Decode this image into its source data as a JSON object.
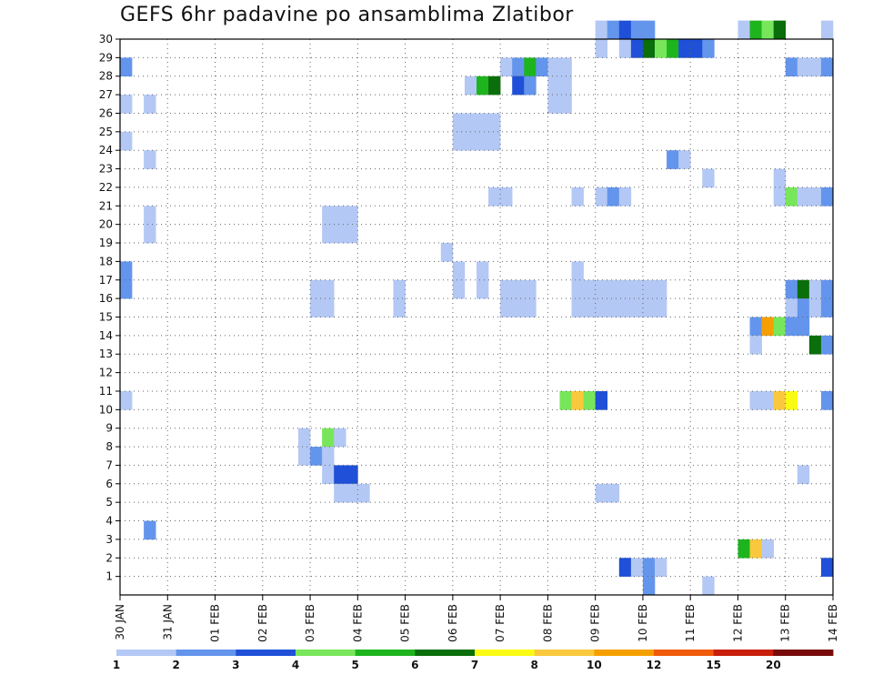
{
  "title": "GEFS 6hr padavine po ansamblima Zlatibor",
  "chart_data": {
    "type": "heatmap",
    "title": "GEFS 6hr padavine po ansamblima Zlatibor",
    "x_tick_labels": [
      "30 JAN",
      "31 JAN",
      "01 FEB",
      "02 FEB",
      "03 FEB",
      "04 FEB",
      "05 FEB",
      "06 FEB",
      "07 FEB",
      "08 FEB",
      "09 FEB",
      "10 FEB",
      "11 FEB",
      "12 FEB",
      "13 FEB",
      "14 FEB"
    ],
    "y_tick_labels": [
      "1",
      "2",
      "3",
      "4",
      "5",
      "6",
      "7",
      "8",
      "9",
      "10",
      "11",
      "12",
      "13",
      "14",
      "15",
      "16",
      "17",
      "18",
      "19",
      "20",
      "21",
      "22",
      "23",
      "24",
      "25",
      "26",
      "27",
      "28",
      "29",
      "30"
    ],
    "x_range_steps": [
      0,
      60
    ],
    "y_range_members": [
      0,
      30
    ],
    "step_hours": 6,
    "colorbar": {
      "labels": [
        "1",
        "2",
        "3",
        "4",
        "5",
        "6",
        "7",
        "8",
        "10",
        "12",
        "15",
        "20"
      ],
      "bins": [
        {
          "min": 1,
          "color": "#b4c8f5"
        },
        {
          "min": 2,
          "color": "#6495ed"
        },
        {
          "min": 3,
          "color": "#1f50d7"
        },
        {
          "min": 4,
          "color": "#78e65a"
        },
        {
          "min": 5,
          "color": "#1eb41e"
        },
        {
          "min": 6,
          "color": "#0a6e0a"
        },
        {
          "min": 7,
          "color": "#fafa14"
        },
        {
          "min": 8,
          "color": "#fac83c"
        },
        {
          "min": 10,
          "color": "#f5a000"
        },
        {
          "min": 12,
          "color": "#f05a0a"
        },
        {
          "min": 15,
          "color": "#c81e0a"
        },
        {
          "min": 20,
          "color": "#780a0a"
        }
      ]
    },
    "cells": [
      {
        "m": 30,
        "s": 40,
        "c": 1
      },
      {
        "m": 30,
        "s": 41,
        "c": 2
      },
      {
        "m": 30,
        "s": 42,
        "c": 3
      },
      {
        "m": 30,
        "s": 43,
        "c": 2
      },
      {
        "m": 30,
        "s": 44,
        "c": 2
      },
      {
        "m": 30,
        "s": 52,
        "c": 1
      },
      {
        "m": 30,
        "s": 53,
        "c": 5
      },
      {
        "m": 30,
        "s": 54,
        "c": 4
      },
      {
        "m": 30,
        "s": 55,
        "c": 6
      },
      {
        "m": 30,
        "s": 59,
        "c": 1
      },
      {
        "m": 29,
        "s": 40,
        "c": 1
      },
      {
        "m": 29,
        "s": 42,
        "c": 1
      },
      {
        "m": 29,
        "s": 43,
        "c": 3
      },
      {
        "m": 29,
        "s": 44,
        "c": 6
      },
      {
        "m": 29,
        "s": 45,
        "c": 4
      },
      {
        "m": 29,
        "s": 46,
        "c": 5
      },
      {
        "m": 29,
        "s": 47,
        "c": 3
      },
      {
        "m": 29,
        "s": 48,
        "c": 3
      },
      {
        "m": 29,
        "s": 49,
        "c": 2
      },
      {
        "m": 28,
        "s": 0,
        "c": 2
      },
      {
        "m": 28,
        "s": 32,
        "c": 1
      },
      {
        "m": 28,
        "s": 33,
        "c": 2
      },
      {
        "m": 28,
        "s": 34,
        "c": 5
      },
      {
        "m": 28,
        "s": 35,
        "c": 2
      },
      {
        "m": 28,
        "s": 36,
        "c": 1
      },
      {
        "m": 28,
        "s": 37,
        "c": 1
      },
      {
        "m": 28,
        "s": 56,
        "c": 2
      },
      {
        "m": 28,
        "s": 57,
        "c": 1
      },
      {
        "m": 28,
        "s": 58,
        "c": 1
      },
      {
        "m": 28,
        "s": 59,
        "c": 2
      },
      {
        "m": 27,
        "s": 29,
        "c": 1
      },
      {
        "m": 27,
        "s": 30,
        "c": 5
      },
      {
        "m": 27,
        "s": 31,
        "c": 6
      },
      {
        "m": 27,
        "s": 33,
        "c": 3
      },
      {
        "m": 27,
        "s": 34,
        "c": 2
      },
      {
        "m": 27,
        "s": 36,
        "c": 1
      },
      {
        "m": 27,
        "s": 37,
        "c": 1
      },
      {
        "m": 26,
        "s": 0,
        "c": 1
      },
      {
        "m": 26,
        "s": 2,
        "c": 1
      },
      {
        "m": 26,
        "s": 36,
        "c": 1
      },
      {
        "m": 26,
        "s": 37,
        "c": 1
      },
      {
        "m": 25,
        "s": 28,
        "c": 1
      },
      {
        "m": 25,
        "s": 29,
        "c": 1
      },
      {
        "m": 25,
        "s": 30,
        "c": 1
      },
      {
        "m": 25,
        "s": 31,
        "c": 1
      },
      {
        "m": 24,
        "s": 28,
        "c": 1
      },
      {
        "m": 24,
        "s": 29,
        "c": 1
      },
      {
        "m": 24,
        "s": 30,
        "c": 1
      },
      {
        "m": 24,
        "s": 31,
        "c": 1
      },
      {
        "m": 24,
        "s": 0,
        "c": 1
      },
      {
        "m": 23,
        "s": 2,
        "c": 1
      },
      {
        "m": 23,
        "s": 46,
        "c": 2
      },
      {
        "m": 23,
        "s": 47,
        "c": 1
      },
      {
        "m": 22,
        "s": 49,
        "c": 1
      },
      {
        "m": 22,
        "s": 55,
        "c": 1
      },
      {
        "m": 21,
        "s": 31,
        "c": 1
      },
      {
        "m": 21,
        "s": 32,
        "c": 1
      },
      {
        "m": 21,
        "s": 38,
        "c": 1
      },
      {
        "m": 21,
        "s": 40,
        "c": 1
      },
      {
        "m": 21,
        "s": 41,
        "c": 2
      },
      {
        "m": 21,
        "s": 42,
        "c": 1
      },
      {
        "m": 21,
        "s": 55,
        "c": 1
      },
      {
        "m": 21,
        "s": 56,
        "c": 4
      },
      {
        "m": 21,
        "s": 57,
        "c": 1
      },
      {
        "m": 21,
        "s": 58,
        "c": 1
      },
      {
        "m": 21,
        "s": 59,
        "c": 2
      },
      {
        "m": 20,
        "s": 2,
        "c": 1
      },
      {
        "m": 20,
        "s": 17,
        "c": 1
      },
      {
        "m": 20,
        "s": 18,
        "c": 1
      },
      {
        "m": 20,
        "s": 19,
        "c": 1
      },
      {
        "m": 19,
        "s": 2,
        "c": 1
      },
      {
        "m": 19,
        "s": 17,
        "c": 1
      },
      {
        "m": 19,
        "s": 18,
        "c": 1
      },
      {
        "m": 19,
        "s": 19,
        "c": 1
      },
      {
        "m": 18,
        "s": 27,
        "c": 1
      },
      {
        "m": 17,
        "s": 38,
        "c": 1
      },
      {
        "m": 17,
        "s": 0,
        "c": 2
      },
      {
        "m": 17,
        "s": 28,
        "c": 1
      },
      {
        "m": 17,
        "s": 30,
        "c": 1
      },
      {
        "m": 16,
        "s": 0,
        "c": 2
      },
      {
        "m": 16,
        "s": 16,
        "c": 1
      },
      {
        "m": 16,
        "s": 17,
        "c": 1
      },
      {
        "m": 16,
        "s": 23,
        "c": 1
      },
      {
        "m": 16,
        "s": 28,
        "c": 1
      },
      {
        "m": 16,
        "s": 30,
        "c": 1
      },
      {
        "m": 16,
        "s": 32,
        "c": 1
      },
      {
        "m": 16,
        "s": 33,
        "c": 1
      },
      {
        "m": 16,
        "s": 34,
        "c": 1
      },
      {
        "m": 16,
        "s": 38,
        "c": 1
      },
      {
        "m": 16,
        "s": 39,
        "c": 1
      },
      {
        "m": 16,
        "s": 40,
        "c": 1
      },
      {
        "m": 16,
        "s": 41,
        "c": 1
      },
      {
        "m": 16,
        "s": 42,
        "c": 1
      },
      {
        "m": 16,
        "s": 43,
        "c": 1
      },
      {
        "m": 16,
        "s": 44,
        "c": 1
      },
      {
        "m": 16,
        "s": 45,
        "c": 1
      },
      {
        "m": 16,
        "s": 56,
        "c": 2
      },
      {
        "m": 16,
        "s": 57,
        "c": 6
      },
      {
        "m": 16,
        "s": 58,
        "c": 1
      },
      {
        "m": 16,
        "s": 59,
        "c": 2
      },
      {
        "m": 15,
        "s": 16,
        "c": 1
      },
      {
        "m": 15,
        "s": 17,
        "c": 1
      },
      {
        "m": 15,
        "s": 23,
        "c": 1
      },
      {
        "m": 15,
        "s": 32,
        "c": 1
      },
      {
        "m": 15,
        "s": 33,
        "c": 1
      },
      {
        "m": 15,
        "s": 34,
        "c": 1
      },
      {
        "m": 15,
        "s": 38,
        "c": 1
      },
      {
        "m": 15,
        "s": 39,
        "c": 1
      },
      {
        "m": 15,
        "s": 40,
        "c": 1
      },
      {
        "m": 15,
        "s": 41,
        "c": 1
      },
      {
        "m": 15,
        "s": 42,
        "c": 1
      },
      {
        "m": 15,
        "s": 43,
        "c": 1
      },
      {
        "m": 15,
        "s": 44,
        "c": 1
      },
      {
        "m": 15,
        "s": 45,
        "c": 1
      },
      {
        "m": 15,
        "s": 56,
        "c": 1
      },
      {
        "m": 15,
        "s": 57,
        "c": 2
      },
      {
        "m": 15,
        "s": 58,
        "c": 1
      },
      {
        "m": 15,
        "s": 59,
        "c": 2
      },
      {
        "m": 14,
        "s": 53,
        "c": 2
      },
      {
        "m": 14,
        "s": 54,
        "c": 9
      },
      {
        "m": 14,
        "s": 55,
        "c": 4
      },
      {
        "m": 14,
        "s": 56,
        "c": 2
      },
      {
        "m": 14,
        "s": 57,
        "c": 2
      },
      {
        "m": 13,
        "s": 53,
        "c": 1
      },
      {
        "m": 13,
        "s": 58,
        "c": 6
      },
      {
        "m": 13,
        "s": 59,
        "c": 2
      },
      {
        "m": 10,
        "s": 0,
        "c": 1
      },
      {
        "m": 10,
        "s": 37,
        "c": 4
      },
      {
        "m": 10,
        "s": 38,
        "c": 8
      },
      {
        "m": 10,
        "s": 39,
        "c": 4
      },
      {
        "m": 10,
        "s": 40,
        "c": 3
      },
      {
        "m": 10,
        "s": 53,
        "c": 1
      },
      {
        "m": 10,
        "s": 54,
        "c": 1
      },
      {
        "m": 10,
        "s": 55,
        "c": 8
      },
      {
        "m": 10,
        "s": 56,
        "c": 7
      },
      {
        "m": 10,
        "s": 59,
        "c": 2
      },
      {
        "m": 8,
        "s": 15,
        "c": 1
      },
      {
        "m": 8,
        "s": 17,
        "c": 4
      },
      {
        "m": 8,
        "s": 18,
        "c": 1
      },
      {
        "m": 7,
        "s": 15,
        "c": 1
      },
      {
        "m": 7,
        "s": 16,
        "c": 2
      },
      {
        "m": 7,
        "s": 17,
        "c": 1
      },
      {
        "m": 6,
        "s": 17,
        "c": 1
      },
      {
        "m": 6,
        "s": 18,
        "c": 3
      },
      {
        "m": 6,
        "s": 19,
        "c": 3
      },
      {
        "m": 6,
        "s": 57,
        "c": 1
      },
      {
        "m": 5,
        "s": 18,
        "c": 1
      },
      {
        "m": 5,
        "s": 19,
        "c": 1
      },
      {
        "m": 5,
        "s": 20,
        "c": 1
      },
      {
        "m": 5,
        "s": 40,
        "c": 1
      },
      {
        "m": 5,
        "s": 41,
        "c": 1
      },
      {
        "m": 3,
        "s": 2,
        "c": 2
      },
      {
        "m": 2,
        "s": 52,
        "c": 5
      },
      {
        "m": 2,
        "s": 53,
        "c": 8
      },
      {
        "m": 2,
        "s": 54,
        "c": 1
      },
      {
        "m": 1,
        "s": 42,
        "c": 3
      },
      {
        "m": 1,
        "s": 43,
        "c": 1
      },
      {
        "m": 1,
        "s": 44,
        "c": 2
      },
      {
        "m": 1,
        "s": 45,
        "c": 1
      },
      {
        "m": 1,
        "s": 59,
        "c": 3
      },
      {
        "m": 0,
        "s": 44,
        "c": 2
      },
      {
        "m": 0,
        "s": 49,
        "c": 1
      }
    ]
  }
}
